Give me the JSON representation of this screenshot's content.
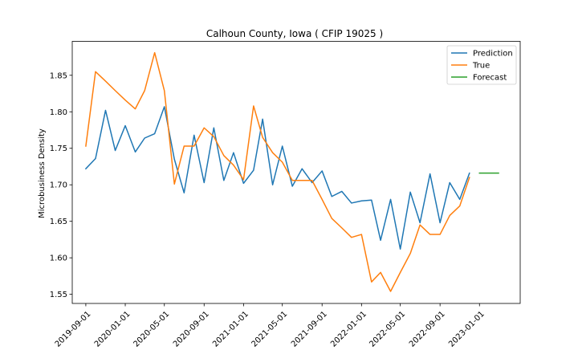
{
  "chart_data": {
    "type": "line",
    "title": "Calhoun County, Iowa ( CFIP 19025 )",
    "xlabel": "",
    "ylabel": "Microbusiness Density",
    "ylim": [
      1.5375,
      1.8965
    ],
    "y_ticks": [
      1.55,
      1.6,
      1.65,
      1.7,
      1.75,
      1.8,
      1.85
    ],
    "y_tick_labels": [
      "1.55",
      "1.60",
      "1.65",
      "1.70",
      "1.75",
      "1.80",
      "1.85"
    ],
    "xlim": [
      "2019-07-21",
      "2023-05-07"
    ],
    "x_ticks": [
      "2019-09-01",
      "2020-01-01",
      "2020-05-01",
      "2020-09-01",
      "2021-01-01",
      "2021-05-01",
      "2021-09-01",
      "2022-01-01",
      "2022-05-01",
      "2022-09-01",
      "2023-01-01"
    ],
    "x_tick_labels": [
      "2019-09-01",
      "2020-01-01",
      "2020-05-01",
      "2020-09-01",
      "2021-01-01",
      "2021-05-01",
      "2021-09-01",
      "2022-01-01",
      "2022-05-01",
      "2022-09-01",
      "2023-01-01"
    ],
    "grid": false,
    "legend_position": "top-right",
    "colors": {
      "prediction": "#1f77b4",
      "true": "#ff7f0e",
      "forecast": "#2ca02c"
    },
    "series": [
      {
        "name": "Prediction",
        "color": "#1f77b4",
        "x": [
          "2019-09-01",
          "2019-10-01",
          "2019-11-01",
          "2019-12-01",
          "2020-01-01",
          "2020-02-01",
          "2020-03-01",
          "2020-04-01",
          "2020-05-01",
          "2020-06-01",
          "2020-07-01",
          "2020-08-01",
          "2020-09-01",
          "2020-10-01",
          "2020-11-01",
          "2020-12-01",
          "2021-01-01",
          "2021-02-01",
          "2021-03-01",
          "2021-04-01",
          "2021-05-01",
          "2021-06-01",
          "2021-07-01",
          "2021-08-01",
          "2021-09-01",
          "2021-10-01",
          "2021-11-01",
          "2021-12-01",
          "2022-01-01",
          "2022-02-01",
          "2022-03-01",
          "2022-04-01",
          "2022-05-01",
          "2022-06-01",
          "2022-07-01",
          "2022-08-01",
          "2022-09-01",
          "2022-10-01",
          "2022-11-01",
          "2022-12-01"
        ],
        "values": [
          1.722,
          1.736,
          1.802,
          1.747,
          1.781,
          1.745,
          1.764,
          1.77,
          1.807,
          1.735,
          1.689,
          1.768,
          1.703,
          1.778,
          1.706,
          1.744,
          1.702,
          1.72,
          1.79,
          1.7,
          1.753,
          1.698,
          1.722,
          1.703,
          1.719,
          1.684,
          1.691,
          1.675,
          1.678,
          1.679,
          1.624,
          1.68,
          1.612,
          1.69,
          1.648,
          1.715,
          1.648,
          1.703,
          1.68,
          1.716
        ]
      },
      {
        "name": "True",
        "color": "#ff7f0e",
        "x": [
          "2019-09-01",
          "2019-10-01",
          "2019-11-01",
          "2019-12-01",
          "2020-01-01",
          "2020-02-01",
          "2020-03-01",
          "2020-04-01",
          "2020-05-01",
          "2020-06-01",
          "2020-07-01",
          "2020-08-01",
          "2020-09-01",
          "2020-10-01",
          "2020-11-01",
          "2020-12-01",
          "2021-01-01",
          "2021-02-01",
          "2021-03-01",
          "2021-04-01",
          "2021-05-01",
          "2021-06-01",
          "2021-07-01",
          "2021-08-01",
          "2021-09-01",
          "2021-10-01",
          "2021-11-01",
          "2021-12-01",
          "2022-01-01",
          "2022-02-01",
          "2022-03-01",
          "2022-04-01",
          "2022-05-01",
          "2022-06-01",
          "2022-07-01",
          "2022-08-01",
          "2022-09-01",
          "2022-10-01",
          "2022-11-01",
          "2022-12-01"
        ],
        "values": [
          1.753,
          1.855,
          1.842,
          1.829,
          1.816,
          1.804,
          1.829,
          1.881,
          1.829,
          1.701,
          1.753,
          1.753,
          1.778,
          1.766,
          1.74,
          1.727,
          1.707,
          1.808,
          1.765,
          1.744,
          1.731,
          1.706,
          1.706,
          1.706,
          1.68,
          1.654,
          1.641,
          1.628,
          1.632,
          1.567,
          1.58,
          1.554,
          1.58,
          1.606,
          1.645,
          1.632,
          1.632,
          1.658,
          1.671,
          1.71
        ]
      },
      {
        "name": "Forecast",
        "color": "#2ca02c",
        "x": [
          "2023-01-01",
          "2023-02-01",
          "2023-03-01"
        ],
        "values": [
          1.716,
          1.716,
          1.716
        ]
      }
    ]
  }
}
